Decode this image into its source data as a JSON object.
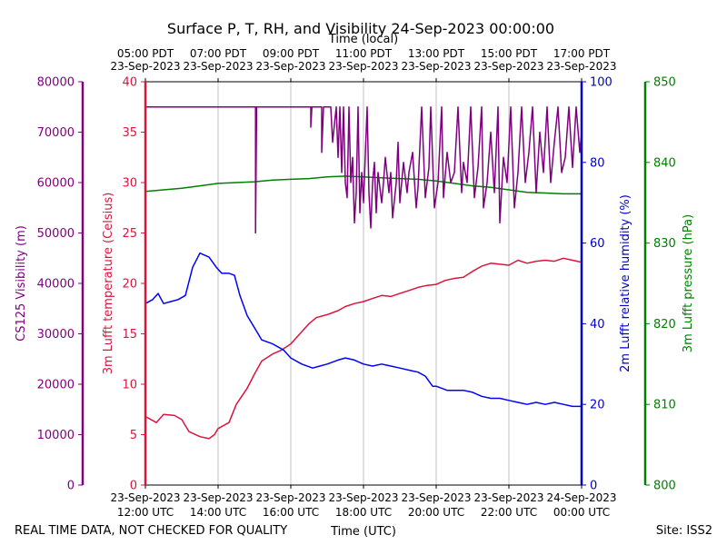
{
  "chart_data": {
    "type": "line",
    "title": "Surface P, T, RH, and Visibility 24-Sep-2023 00:00:00",
    "top_xlabel": "Time (local)",
    "xlabel": "Time (UTC)",
    "footer_left": "REAL TIME DATA, NOT CHECKED FOR QUALITY",
    "footer_right": "Site: ISS2",
    "grid": true,
    "x_range_utc_hours": [
      12,
      24
    ],
    "bottom_ticks": [
      {
        "x": 12,
        "line1": "23-Sep-2023",
        "line2": "12:00 UTC"
      },
      {
        "x": 14,
        "line1": "23-Sep-2023",
        "line2": "14:00 UTC"
      },
      {
        "x": 16,
        "line1": "23-Sep-2023",
        "line2": "16:00 UTC"
      },
      {
        "x": 18,
        "line1": "23-Sep-2023",
        "line2": "18:00 UTC"
      },
      {
        "x": 20,
        "line1": "23-Sep-2023",
        "line2": "20:00 UTC"
      },
      {
        "x": 22,
        "line1": "23-Sep-2023",
        "line2": "22:00 UTC"
      },
      {
        "x": 24,
        "line1": "24-Sep-2023",
        "line2": "00:00 UTC"
      }
    ],
    "top_ticks": [
      {
        "x": 12,
        "line1": "05:00 PDT",
        "line2": "23-Sep-2023"
      },
      {
        "x": 14,
        "line1": "07:00 PDT",
        "line2": "23-Sep-2023"
      },
      {
        "x": 16,
        "line1": "09:00 PDT",
        "line2": "23-Sep-2023"
      },
      {
        "x": 18,
        "line1": "11:00 PDT",
        "line2": "23-Sep-2023"
      },
      {
        "x": 20,
        "line1": "13:00 PDT",
        "line2": "23-Sep-2023"
      },
      {
        "x": 22,
        "line1": "15:00 PDT",
        "line2": "23-Sep-2023"
      },
      {
        "x": 24,
        "line1": "17:00 PDT",
        "line2": "23-Sep-2023"
      }
    ],
    "axes": {
      "visibility": {
        "label": "CS125 Visibility (m)",
        "ylim": [
          0,
          80000
        ],
        "ticks": [
          "0",
          "10000",
          "20000",
          "30000",
          "40000",
          "50000",
          "60000",
          "70000",
          "80000"
        ],
        "color": "#800080"
      },
      "temperature": {
        "label": "3m Lufft temperature (Celsius)",
        "ylim": [
          0,
          40
        ],
        "ticks": [
          "0",
          "5",
          "10",
          "15",
          "20",
          "25",
          "30",
          "35",
          "40"
        ],
        "color": "#dc143c"
      },
      "humidity": {
        "label": "2m Lufft relative humidity (%)",
        "ylim": [
          0,
          100
        ],
        "ticks": [
          "0",
          "20",
          "40",
          "60",
          "80",
          "100"
        ],
        "color": "#0000cd"
      },
      "pressure": {
        "label": "3m Lufft pressure (hPa)",
        "ylim": [
          800,
          850
        ],
        "ticks": [
          "800",
          "810",
          "820",
          "830",
          "840",
          "850"
        ],
        "color": "#008000"
      }
    },
    "series": [
      {
        "key": "temperature",
        "color": "#dc143c",
        "x": [
          12.0,
          12.3,
          12.5,
          12.8,
          13.0,
          13.2,
          13.5,
          13.75,
          13.9,
          14.0,
          14.3,
          14.5,
          14.8,
          15.0,
          15.2,
          15.5,
          15.75,
          16.0,
          16.3,
          16.5,
          16.7,
          17.0,
          17.3,
          17.5,
          17.75,
          18.0,
          18.25,
          18.5,
          18.75,
          19.0,
          19.25,
          19.5,
          19.75,
          20.0,
          20.25,
          20.5,
          20.75,
          21.0,
          21.25,
          21.5,
          21.75,
          22.0,
          22.25,
          22.5,
          22.75,
          23.0,
          23.25,
          23.5,
          23.75,
          24.0
        ],
        "y": [
          6.8,
          6.2,
          7.0,
          6.9,
          6.5,
          5.3,
          4.8,
          4.6,
          5.0,
          5.6,
          6.2,
          8.0,
          9.6,
          11.0,
          12.3,
          13.0,
          13.4,
          14.0,
          15.2,
          16.0,
          16.6,
          16.9,
          17.3,
          17.7,
          18.0,
          18.2,
          18.5,
          18.8,
          18.7,
          19.0,
          19.3,
          19.6,
          19.8,
          19.9,
          20.3,
          20.5,
          20.6,
          21.2,
          21.7,
          22.0,
          21.9,
          21.8,
          22.3,
          22.0,
          22.2,
          22.3,
          22.2,
          22.5,
          22.3,
          22.1
        ]
      },
      {
        "key": "humidity",
        "color": "#0000ff",
        "x": [
          12.0,
          12.2,
          12.35,
          12.5,
          12.7,
          12.9,
          13.1,
          13.3,
          13.5,
          13.75,
          13.95,
          14.1,
          14.3,
          14.45,
          14.6,
          14.8,
          15.0,
          15.2,
          15.5,
          15.8,
          16.0,
          16.3,
          16.6,
          16.8,
          17.0,
          17.3,
          17.5,
          17.75,
          18.0,
          18.25,
          18.5,
          18.75,
          19.0,
          19.25,
          19.5,
          19.7,
          19.9,
          20.0,
          20.3,
          20.5,
          20.75,
          21.0,
          21.25,
          21.5,
          21.75,
          22.0,
          22.25,
          22.5,
          22.75,
          23.0,
          23.25,
          23.5,
          23.75,
          24.0
        ],
        "y": [
          45,
          46,
          47.5,
          45,
          45.5,
          46,
          47,
          54,
          57.5,
          56.5,
          54,
          52.5,
          52.5,
          52,
          47,
          42,
          39,
          36,
          35,
          33.5,
          31.5,
          30,
          29,
          29.5,
          30,
          31,
          31.5,
          31,
          30,
          29.5,
          30,
          29.5,
          29,
          28.5,
          28,
          27,
          24.5,
          24.5,
          23.5,
          23.5,
          23.5,
          23,
          22,
          21.5,
          21.5,
          21,
          20.5,
          20,
          20.5,
          20,
          20.5,
          20,
          19.5,
          19.5
        ]
      },
      {
        "key": "pressure",
        "color": "#008000",
        "x": [
          12.0,
          12.5,
          13.0,
          13.5,
          14.0,
          14.5,
          15.0,
          15.5,
          16.0,
          16.5,
          17.0,
          17.5,
          18.0,
          18.5,
          19.0,
          19.5,
          20.0,
          20.5,
          21.0,
          21.5,
          22.0,
          22.5,
          23.0,
          23.5,
          24.0
        ],
        "y": [
          836.4,
          836.6,
          836.8,
          837.1,
          837.4,
          837.5,
          837.6,
          837.8,
          837.9,
          838.0,
          838.2,
          838.3,
          838.2,
          838.1,
          838.0,
          837.9,
          837.7,
          837.4,
          837.1,
          836.9,
          836.6,
          836.3,
          836.2,
          836.1,
          836.1
        ]
      },
      {
        "key": "visibility",
        "color": "#800080",
        "x": [
          12.0,
          15.03,
          15.03,
          15.06,
          15.06,
          16.55,
          16.55,
          16.58,
          16.58,
          16.85,
          16.85,
          16.9,
          16.9,
          17.1,
          17.15,
          17.25,
          17.3,
          17.35,
          17.4,
          17.45,
          17.5,
          17.55,
          17.6,
          17.65,
          17.7,
          17.75,
          17.8,
          17.85,
          17.9,
          17.95,
          18.0,
          18.1,
          18.15,
          18.2,
          18.25,
          18.3,
          18.35,
          18.4,
          18.5,
          18.55,
          18.6,
          18.7,
          18.75,
          18.8,
          18.9,
          18.95,
          19.0,
          19.1,
          19.2,
          19.25,
          19.35,
          19.45,
          19.5,
          19.6,
          19.7,
          19.8,
          19.85,
          19.95,
          20.05,
          20.15,
          20.2,
          20.3,
          20.4,
          20.5,
          20.6,
          20.7,
          20.75,
          20.85,
          20.95,
          21.05,
          21.15,
          21.25,
          21.3,
          21.4,
          21.5,
          21.6,
          21.7,
          21.75,
          21.85,
          21.95,
          22.05,
          22.15,
          22.25,
          22.35,
          22.45,
          22.55,
          22.65,
          22.75,
          22.85,
          22.95,
          23.05,
          23.15,
          23.25,
          23.35,
          23.45,
          23.55,
          23.65,
          23.75,
          23.85,
          23.95,
          24.0
        ],
        "y": [
          75000,
          75000,
          50000,
          75000,
          75000,
          75000,
          71000,
          75000,
          75000,
          75000,
          66000,
          75000,
          75000,
          75000,
          68000,
          75000,
          65000,
          75000,
          62000,
          75000,
          60000,
          57000,
          75000,
          60000,
          65000,
          52000,
          58000,
          75000,
          54000,
          62000,
          56000,
          75000,
          58000,
          51000,
          60000,
          64000,
          54000,
          62000,
          56000,
          60000,
          65000,
          58000,
          62000,
          53000,
          60000,
          68000,
          56000,
          64000,
          58000,
          62000,
          66000,
          55000,
          59000,
          75000,
          57000,
          63000,
          75000,
          55000,
          60000,
          75000,
          57000,
          66000,
          60000,
          62000,
          75000,
          58000,
          64000,
          60000,
          75000,
          57000,
          63000,
          75000,
          55000,
          60000,
          70000,
          58000,
          75000,
          52000,
          65000,
          60000,
          75000,
          55000,
          62000,
          75000,
          60000,
          66000,
          75000,
          58000,
          70000,
          62000,
          75000,
          60000,
          68000,
          75000,
          62000,
          65000,
          75000,
          63000,
          75000,
          66000,
          70000
        ]
      }
    ]
  }
}
